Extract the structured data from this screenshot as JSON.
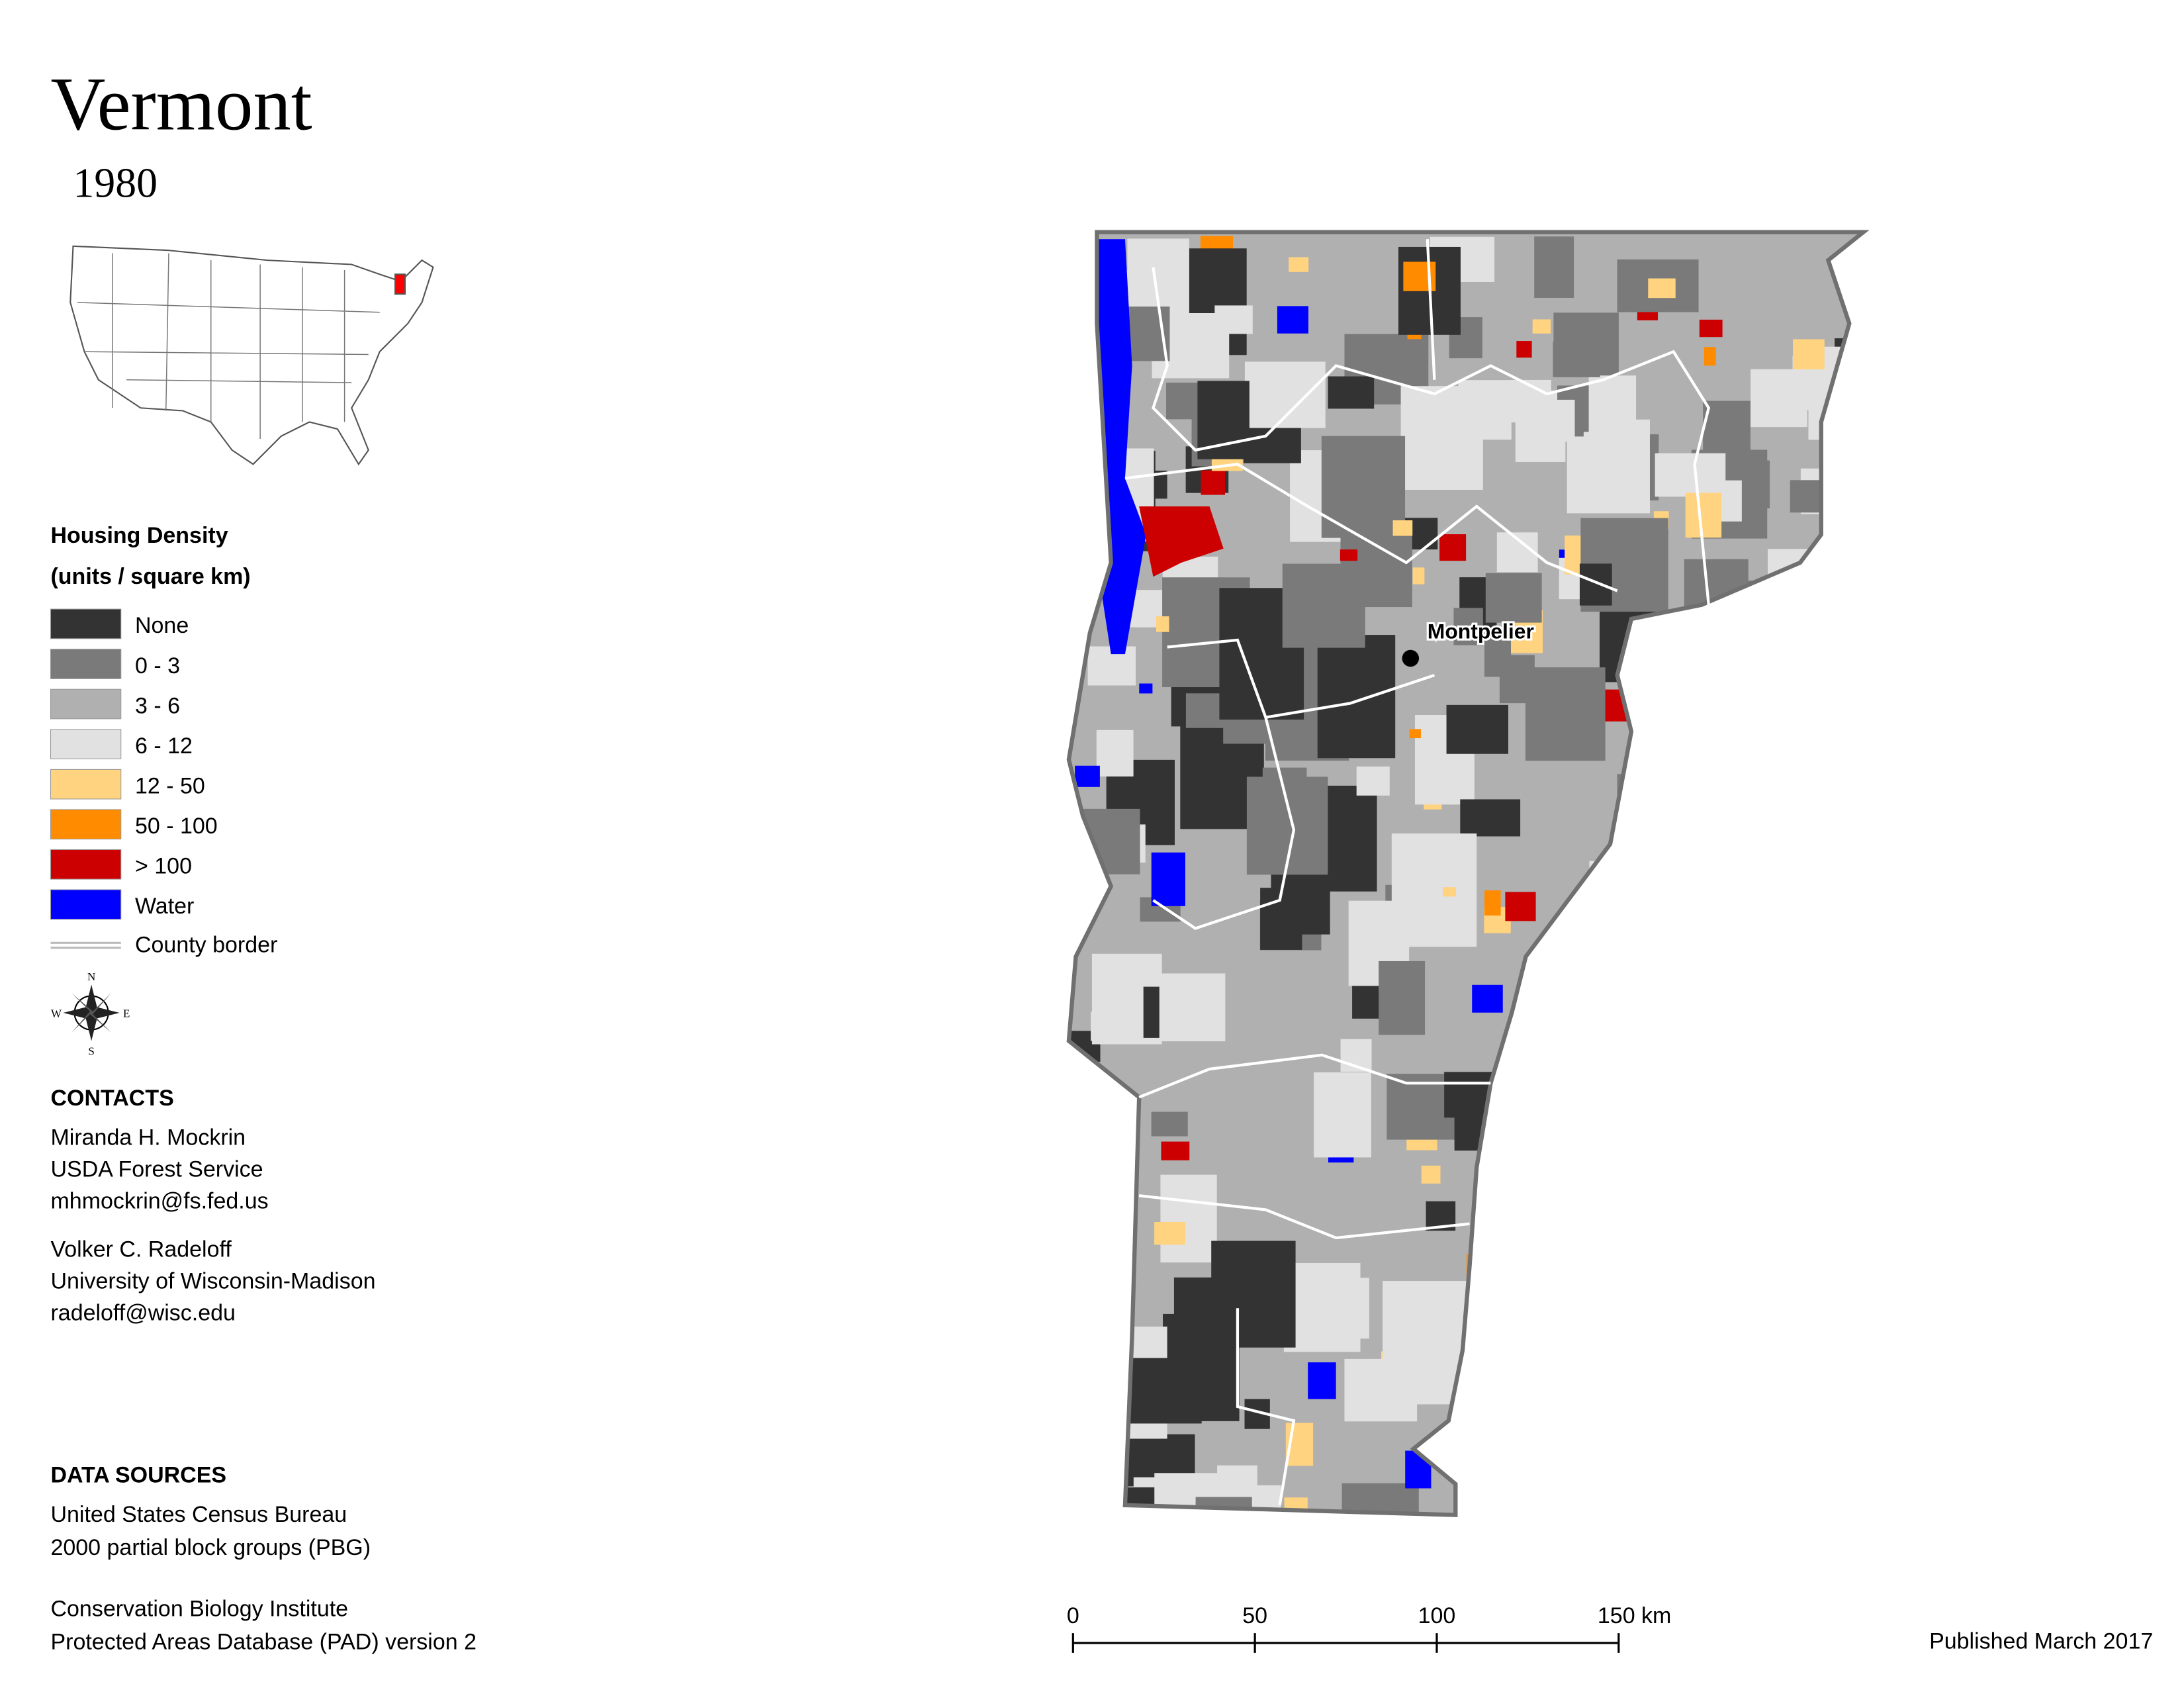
{
  "title": "Vermont",
  "subtitle": "1980",
  "legend": {
    "title": "Housing Density",
    "subtitle": "(units / square km)",
    "items": [
      {
        "label": "None",
        "color": "#333333"
      },
      {
        "label": "0 - 3",
        "color": "#7a7a7a"
      },
      {
        "label": "3 - 6",
        "color": "#b0b0b0"
      },
      {
        "label": "6 - 12",
        "color": "#e1e1e1"
      },
      {
        "label": "12 - 50",
        "color": "#ffd37f"
      },
      {
        "label": "50 - 100",
        "color": "#ff8c00"
      },
      {
        "label": "> 100",
        "color": "#cc0000"
      },
      {
        "label": "Water",
        "color": "#0000ff"
      }
    ],
    "county_border": "County border"
  },
  "compass": {
    "n": "N",
    "e": "E",
    "s": "S",
    "w": "W"
  },
  "map": {
    "city_label": "Montpelier"
  },
  "contacts": {
    "heading": "CONTACTS",
    "people": [
      [
        "Miranda H. Mockrin",
        "USDA Forest Service",
        "mhmockrin@fs.fed.us"
      ],
      [
        "Volker C. Radeloff",
        "University of Wisconsin-Madison",
        "radeloff@wisc.edu"
      ]
    ]
  },
  "data_sources": {
    "heading": "DATA SOURCES",
    "groups": [
      [
        "United States Census Bureau",
        "2000 partial block groups (PBG)"
      ],
      [
        "Conservation Biology Institute",
        "Protected Areas Database (PAD) version 2"
      ]
    ]
  },
  "scale_bar": {
    "ticks": [
      0,
      50,
      100,
      {
        "value": 150,
        "label": "150 km"
      }
    ]
  },
  "footer": "Published March 2017"
}
